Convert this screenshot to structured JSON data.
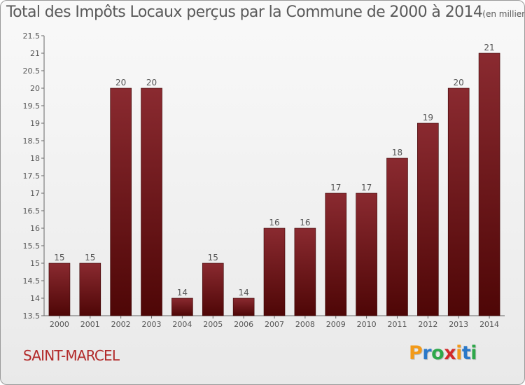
{
  "title": "Total des Impôts Locaux perçus par la Commune de 2000 à 2014",
  "title_unit": "(en milliers d'€)",
  "commune": "SAINT-MARCEL",
  "logo": {
    "letters": [
      "P",
      "r",
      "o",
      "x",
      "i",
      "t",
      "i"
    ],
    "colors": [
      "#f29a1a",
      "#2a78c8",
      "#2ea84a",
      "#d22a2a",
      "#f29a1a",
      "#2a78c8",
      "#2ea84a"
    ]
  },
  "colors": {
    "bar": "#7a1a1f",
    "commune": "#b22a2a"
  },
  "chart_data": {
    "type": "bar",
    "categories": [
      "2000",
      "2001",
      "2002",
      "2003",
      "2004",
      "2005",
      "2006",
      "2007",
      "2008",
      "2009",
      "2010",
      "2011",
      "2012",
      "2013",
      "2014"
    ],
    "values": [
      15,
      15,
      20,
      20,
      14,
      15,
      14,
      16,
      16,
      17,
      17,
      18,
      19,
      20,
      21
    ],
    "data_labels": [
      "15",
      "15",
      "20",
      "20",
      "14",
      "15",
      "14",
      "16",
      "16",
      "17",
      "17",
      "18",
      "19",
      "20",
      "21"
    ],
    "yticks": [
      "13.5",
      "14",
      "14.5",
      "15",
      "15.5",
      "16",
      "16.5",
      "17",
      "17.5",
      "18",
      "18.5",
      "19",
      "19.5",
      "20",
      "20.5",
      "21",
      "21.5"
    ],
    "ylim": [
      13.5,
      21.5
    ],
    "grid": false,
    "legend": "none"
  }
}
